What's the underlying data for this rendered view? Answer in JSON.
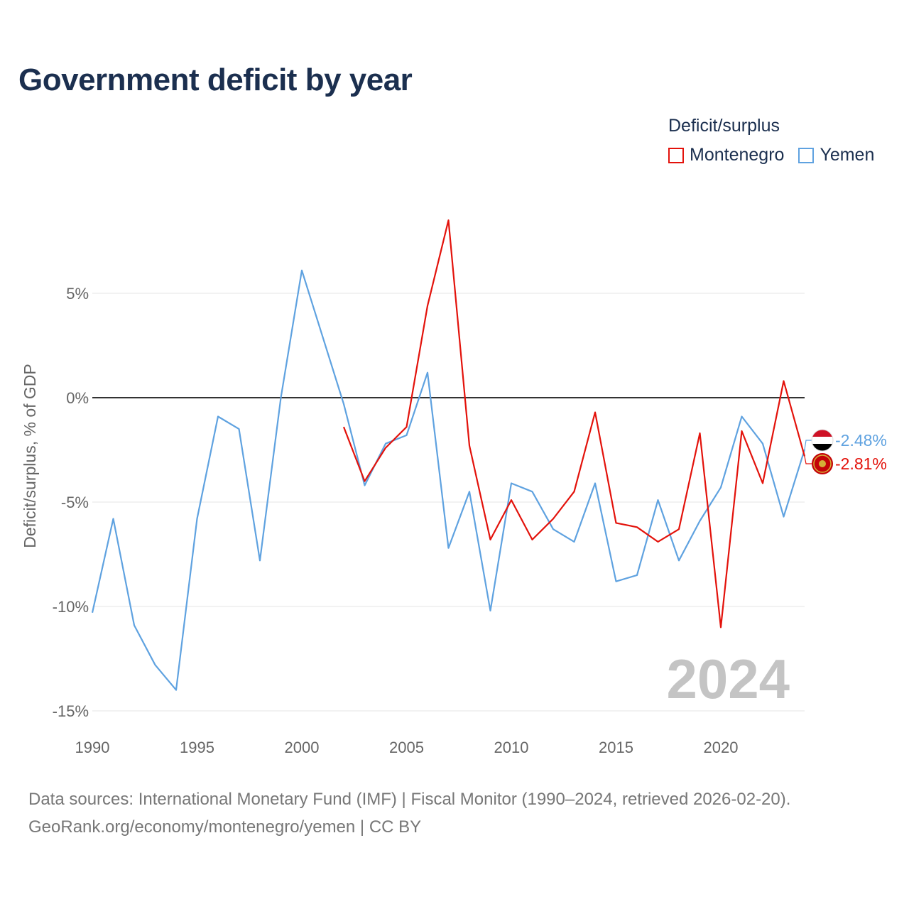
{
  "title": "Government deficit by year",
  "legend": {
    "title": "Deficit/surplus",
    "items": [
      {
        "name": "Montenegro",
        "color": "#e3120b"
      },
      {
        "name": "Yemen",
        "color": "#5fa2e0"
      }
    ]
  },
  "source": {
    "line1": "Data sources: International Monetary Fund (IMF) | Fiscal Monitor (1990–2024, retrieved 2026-02-20).",
    "line2": "GeoRank.org/economy/montenegro/yemen | CC BY"
  },
  "year_watermark": "2024",
  "chart_data": {
    "type": "line",
    "title": "Government deficit by year",
    "xlabel": "",
    "ylabel": "Deficit/surplus, % of GDP",
    "xlim": [
      1990,
      2024
    ],
    "ylim": [
      -15,
      9
    ],
    "x_ticks": [
      {
        "value": 1990,
        "label": "1990"
      },
      {
        "value": 1995,
        "label": "1995"
      },
      {
        "value": 2000,
        "label": "2000"
      },
      {
        "value": 2005,
        "label": "2005"
      },
      {
        "value": 2010,
        "label": "2010"
      },
      {
        "value": 2015,
        "label": "2015"
      },
      {
        "value": 2020,
        "label": "2020"
      }
    ],
    "y_ticks": [
      {
        "value": 5,
        "label": "5%"
      },
      {
        "value": 0,
        "label": "0%"
      },
      {
        "value": -5,
        "label": "-5%"
      },
      {
        "value": -10,
        "label": "-10%"
      },
      {
        "value": -15,
        "label": "-15%"
      }
    ],
    "series": [
      {
        "name": "Yemen",
        "color": "#5fa2e0",
        "end_label": "-2.48%",
        "points": [
          [
            1990,
            -10.3
          ],
          [
            1991,
            -5.8
          ],
          [
            1992,
            -10.9
          ],
          [
            1993,
            -12.8
          ],
          [
            1994,
            -14.0
          ],
          [
            1995,
            -5.8
          ],
          [
            1996,
            -0.9
          ],
          [
            1997,
            -1.5
          ],
          [
            1998,
            -7.8
          ],
          [
            1999,
            0.0
          ],
          [
            2000,
            6.1
          ],
          [
            2001,
            2.9
          ],
          [
            2002,
            -0.3
          ],
          [
            2003,
            -4.2
          ],
          [
            2004,
            -2.2
          ],
          [
            2005,
            -1.8
          ],
          [
            2006,
            1.2
          ],
          [
            2007,
            -7.2
          ],
          [
            2008,
            -4.5
          ],
          [
            2009,
            -10.2
          ],
          [
            2010,
            -4.1
          ],
          [
            2011,
            -4.5
          ],
          [
            2012,
            -6.3
          ],
          [
            2013,
            -6.9
          ],
          [
            2014,
            -4.1
          ],
          [
            2015,
            -8.8
          ],
          [
            2016,
            -8.5
          ],
          [
            2017,
            -4.9
          ],
          [
            2018,
            -7.8
          ],
          [
            2019,
            -5.9
          ],
          [
            2020,
            -4.3
          ],
          [
            2021,
            -0.9
          ],
          [
            2022,
            -2.2
          ],
          [
            2023,
            -5.7
          ],
          [
            2024,
            -2.48
          ]
        ]
      },
      {
        "name": "Montenegro",
        "color": "#e3120b",
        "end_label": "-2.81%",
        "points": [
          [
            2002,
            -1.4
          ],
          [
            2003,
            -4.0
          ],
          [
            2004,
            -2.4
          ],
          [
            2005,
            -1.4
          ],
          [
            2006,
            4.4
          ],
          [
            2007,
            8.5
          ],
          [
            2008,
            -2.3
          ],
          [
            2009,
            -6.8
          ],
          [
            2010,
            -4.9
          ],
          [
            2011,
            -6.8
          ],
          [
            2012,
            -5.8
          ],
          [
            2013,
            -4.5
          ],
          [
            2014,
            -0.7
          ],
          [
            2015,
            -6.0
          ],
          [
            2016,
            -6.2
          ],
          [
            2017,
            -6.9
          ],
          [
            2018,
            -6.3
          ],
          [
            2019,
            -1.7
          ],
          [
            2020,
            -11.0
          ],
          [
            2021,
            -1.6
          ],
          [
            2022,
            -4.1
          ],
          [
            2023,
            0.8
          ],
          [
            2024,
            -2.81
          ]
        ]
      }
    ]
  }
}
